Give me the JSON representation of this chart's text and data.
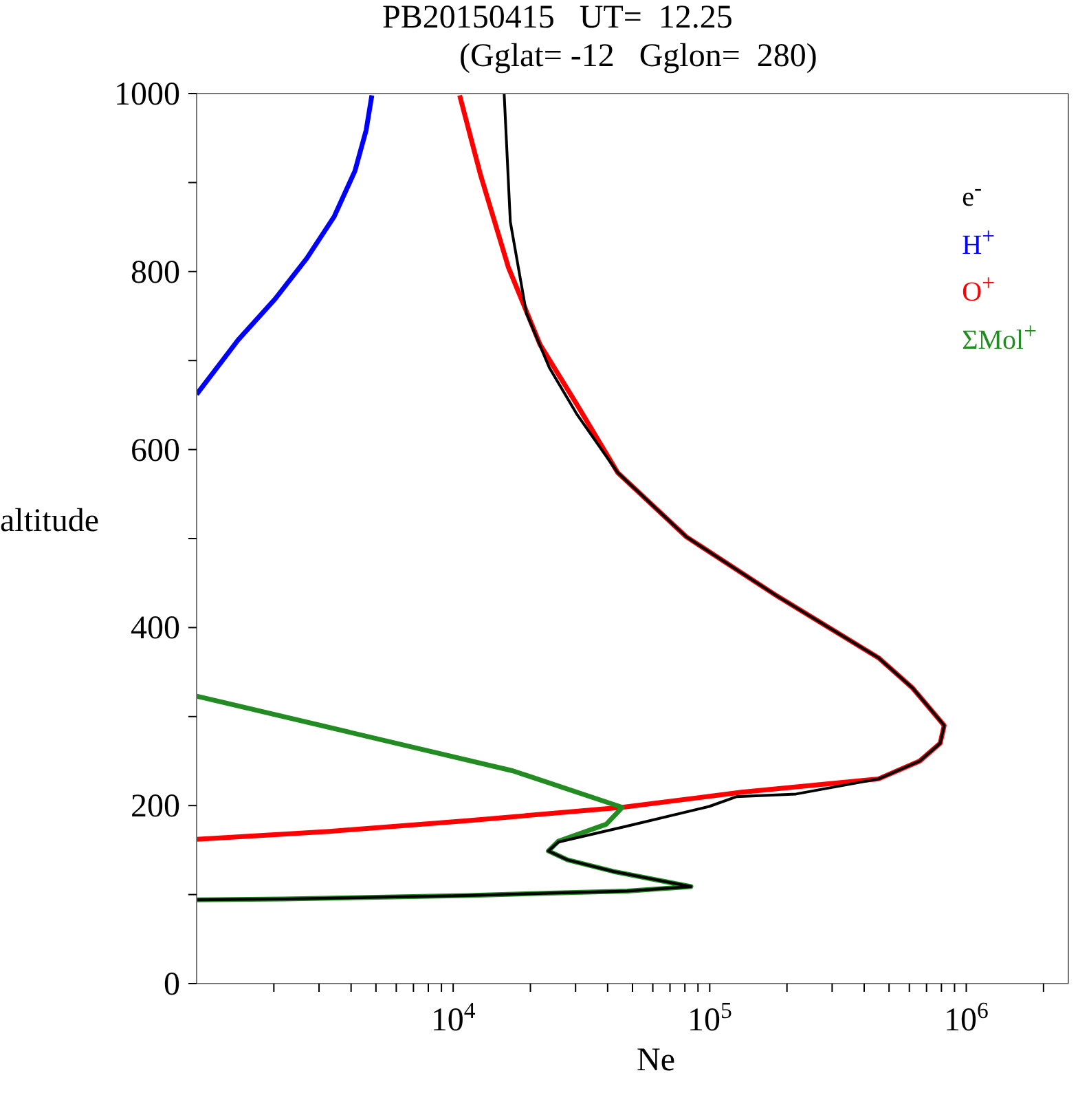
{
  "chart_data": {
    "type": "line",
    "title": "PB20150415   UT=  12.25",
    "subtitle": "(Gglat= -12   Gglon=  280)",
    "xlabel": "Ne",
    "ylabel": "altitude",
    "log": "x",
    "xlim": [
      1000,
      2500000
    ],
    "ylim": [
      0,
      1000
    ],
    "xticks": [
      {
        "value": 2000,
        "label": null
      },
      {
        "value": 3000,
        "label": null
      },
      {
        "value": 4000,
        "label": null
      },
      {
        "value": 5000,
        "label": null
      },
      {
        "value": 6000,
        "label": null
      },
      {
        "value": 7000,
        "label": null
      },
      {
        "value": 8000,
        "label": null
      },
      {
        "value": 9000,
        "label": null
      },
      {
        "value": 10000,
        "label": "10$^{4}$"
      },
      {
        "value": 20000,
        "label": null
      },
      {
        "value": 30000,
        "label": null
      },
      {
        "value": 40000,
        "label": null
      },
      {
        "value": 50000,
        "label": null
      },
      {
        "value": 60000,
        "label": null
      },
      {
        "value": 70000,
        "label": null
      },
      {
        "value": 80000,
        "label": null
      },
      {
        "value": 90000,
        "label": null
      },
      {
        "value": 100000,
        "label": "10$^{5}$"
      },
      {
        "value": 200000,
        "label": null
      },
      {
        "value": 300000,
        "label": null
      },
      {
        "value": 400000,
        "label": null
      },
      {
        "value": 500000,
        "label": null
      },
      {
        "value": 600000,
        "label": null
      },
      {
        "value": 700000,
        "label": null
      },
      {
        "value": 800000,
        "label": null
      },
      {
        "value": 900000,
        "label": null
      },
      {
        "value": 1000000,
        "label": "10$^{6}$"
      },
      {
        "value": 2000000,
        "label": null
      }
    ],
    "yticks": [
      0,
      {
        "value": 100,
        "label": null
      },
      200,
      {
        "value": 300,
        "label": null
      },
      400,
      {
        "value": 500,
        "label": null
      },
      600,
      {
        "value": 700,
        "label": null
      },
      800,
      {
        "value": 900,
        "label": null
      },
      1000
    ],
    "legend": "top right",
    "marker": "none",
    "line_style": "solid",
    "series": [
      {
        "name": "e$^{-}$",
        "color": "#000000",
        "x": [
          15800,
          16700,
          19300,
          23700,
          30300,
          43800,
          81000,
          184000,
          455000,
          618000,
          820000,
          791000,
          658000,
          455000,
          217000,
          127000,
          99500,
          47700,
          25700,
          23500,
          27900,
          42100,
          84500,
          47700,
          11300,
          2190,
          1000
        ],
        "values": [
          1000,
          856,
          753,
          692,
          640,
          574,
          502,
          435,
          366,
          332,
          290,
          270,
          250,
          230,
          213,
          210,
          199,
          177,
          159,
          149,
          139,
          126,
          109,
          104,
          99,
          95,
          94
        ]
      },
      {
        "name": "H$^{+}$",
        "color": "#0000ff",
        "x": [
          4820,
          4580,
          4140,
          3440,
          2690,
          2020,
          1450,
          1000
        ],
        "values": [
          998,
          959,
          913,
          862,
          815,
          769,
          723,
          662
        ]
      },
      {
        "name": "O$^{+}$",
        "color": "#ff0000",
        "x": [
          10600,
          12800,
          16400,
          21800,
          30300,
          43800,
          81000,
          184000,
          455000,
          618000,
          820000,
          791000,
          658000,
          455000,
          133000,
          45600,
          11300,
          3300,
          1000
        ],
        "values": [
          998,
          908,
          805,
          718,
          651,
          574,
          502,
          435,
          366,
          332,
          290,
          270,
          250,
          230,
          215,
          198,
          183,
          171,
          162
        ]
      },
      {
        "name": "ΣMol$^{+}$",
        "color": "#228b22",
        "x": [
          1000,
          17100,
          45600,
          39500,
          25700,
          23500,
          27900,
          42100,
          84500,
          47700,
          11300,
          2190,
          1000
        ],
        "values": [
          323,
          239,
          198,
          179,
          160,
          149,
          139,
          126,
          109,
          104,
          99,
          95,
          94
        ]
      }
    ]
  }
}
